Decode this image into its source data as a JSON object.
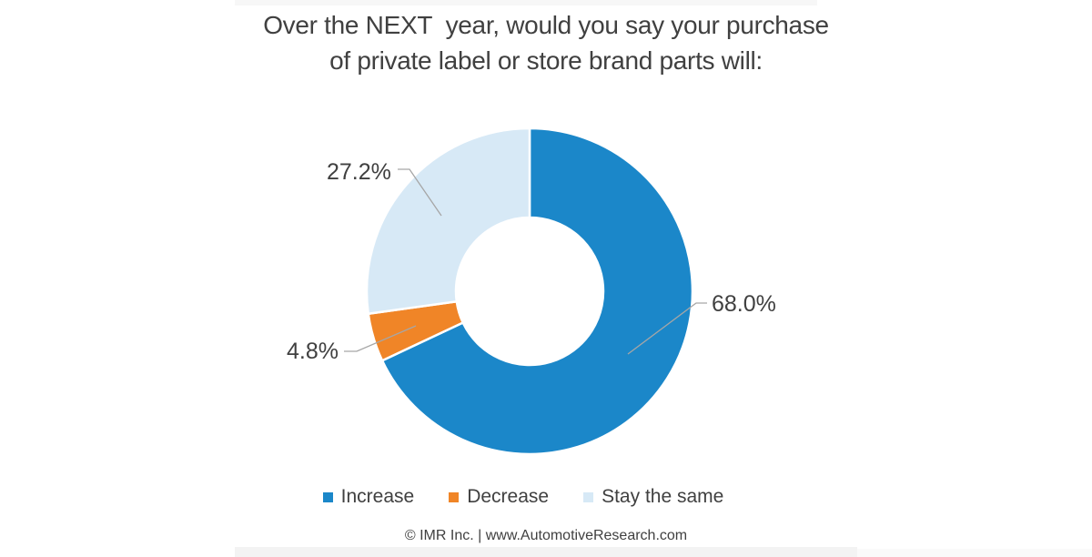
{
  "title": {
    "line1": "Over the NEXT  year, would you say your purchase",
    "line2": "of private label or store brand parts will:"
  },
  "chart_data": {
    "type": "pie",
    "subtype": "donut",
    "title": "Over the NEXT  year, would you say your purchase of private label or store brand parts will:",
    "categories": [
      "Increase",
      "Decrease",
      "Stay the same"
    ],
    "values": [
      68.0,
      4.8,
      27.2
    ],
    "slices": [
      {
        "label": "Increase",
        "value": 68.0,
        "display": "68.0%",
        "color": "#1B87C9"
      },
      {
        "label": "Decrease",
        "value": 4.8,
        "display": "4.8%",
        "color": "#F08527"
      },
      {
        "label": "Stay the same",
        "value": 27.2,
        "display": "27.2%",
        "color": "#D7E9F6"
      }
    ],
    "start_angle_deg": 0,
    "direction": "clockwise",
    "donut_hole_ratio": 0.45,
    "legend_position": "bottom",
    "data_labels": "percent-outside-with-leader-lines"
  },
  "footer": {
    "text": "© IMR Inc. | www.AutomotiveResearch.com"
  },
  "colors": {
    "label_text": "#404040",
    "title_text": "#404040",
    "leader_line": "#A6A6A6",
    "slice_border": "#FFFFFF",
    "background": "#FFFFFF"
  }
}
